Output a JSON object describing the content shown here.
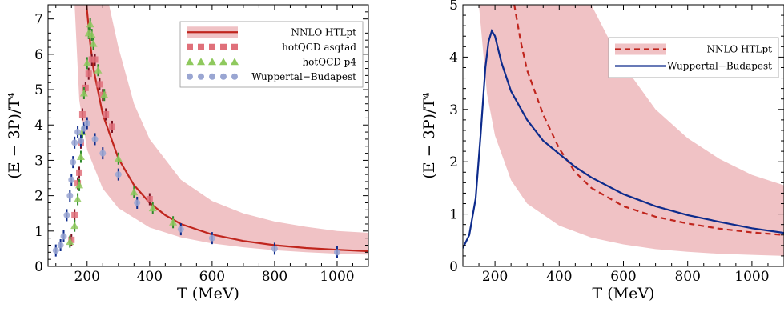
{
  "chart_data": [
    {
      "type": "scatter",
      "xlabel": "T (MeV)",
      "ylabel": "(E − 3P)/T⁴",
      "xlim": [
        75,
        1100
      ],
      "ylim": [
        0,
        7.4
      ],
      "xticks": [
        200,
        400,
        600,
        800,
        1000
      ],
      "yticks": [
        0,
        1,
        2,
        3,
        4,
        5,
        6,
        7
      ],
      "legend_position": "top-right",
      "band": {
        "color": "#f0c2c5",
        "lower": [
          [
            160,
            7.4
          ],
          [
            175,
            4.7
          ],
          [
            200,
            3.3
          ],
          [
            250,
            2.2
          ],
          [
            300,
            1.65
          ],
          [
            400,
            1.1
          ],
          [
            500,
            0.82
          ],
          [
            600,
            0.65
          ],
          [
            700,
            0.54
          ],
          [
            800,
            0.46
          ],
          [
            900,
            0.4
          ],
          [
            1000,
            0.36
          ],
          [
            1100,
            0.33
          ]
        ],
        "upper": [
          [
            145,
            7.4
          ],
          [
            200,
            7.4
          ],
          [
            270,
            7.4
          ],
          [
            300,
            6.2
          ],
          [
            350,
            4.6
          ],
          [
            400,
            3.6
          ],
          [
            500,
            2.45
          ],
          [
            600,
            1.85
          ],
          [
            700,
            1.5
          ],
          [
            800,
            1.27
          ],
          [
            900,
            1.12
          ],
          [
            1000,
            1.0
          ],
          [
            1100,
            0.95
          ]
        ]
      },
      "series": [
        {
          "name": "NNLO HTLpt",
          "style": "line",
          "color": "#c0251d",
          "points": [
            [
              198,
              7.4
            ],
            [
              210,
              6.3
            ],
            [
              220,
              5.6
            ],
            [
              250,
              4.3
            ],
            [
              300,
              3.05
            ],
            [
              350,
              2.3
            ],
            [
              400,
              1.8
            ],
            [
              450,
              1.45
            ],
            [
              500,
              1.2
            ],
            [
              600,
              0.9
            ],
            [
              700,
              0.72
            ],
            [
              800,
              0.6
            ],
            [
              900,
              0.52
            ],
            [
              1000,
              0.47
            ],
            [
              1100,
              0.43
            ]
          ]
        },
        {
          "name": "hotQCD asqtad",
          "style": "square",
          "color": "#e0707a",
          "points": [
            [
              150,
              0.75
            ],
            [
              160,
              1.45
            ],
            [
              170,
              2.35
            ],
            [
              175,
              2.65
            ],
            [
              180,
              3.5
            ],
            [
              185,
              4.3
            ],
            [
              195,
              5.05
            ],
            [
              205,
              5.45
            ],
            [
              215,
              5.85
            ],
            [
              225,
              5.85
            ],
            [
              240,
              5.15
            ],
            [
              250,
              4.85
            ],
            [
              260,
              4.3
            ],
            [
              280,
              3.95
            ],
            [
              400,
              1.9
            ]
          ]
        },
        {
          "name": "hotQCD p4",
          "style": "triangle",
          "color": "#8fc95e",
          "points": [
            [
              145,
              0.7
            ],
            [
              160,
              1.15
            ],
            [
              170,
              1.9
            ],
            [
              175,
              2.3
            ],
            [
              180,
              3.1
            ],
            [
              185,
              3.8
            ],
            [
              190,
              4.9
            ],
            [
              200,
              5.75
            ],
            [
              205,
              6.6
            ],
            [
              210,
              6.85
            ],
            [
              215,
              6.55
            ],
            [
              220,
              6.3
            ],
            [
              235,
              5.55
            ],
            [
              255,
              4.85
            ],
            [
              300,
              3.05
            ],
            [
              350,
              2.1
            ],
            [
              410,
              1.65
            ],
            [
              475,
              1.25
            ]
          ]
        },
        {
          "name": "Wuppertal−Budapest",
          "style": "circle",
          "color": "#9aa6d2",
          "points": [
            [
              100,
              0.45
            ],
            [
              115,
              0.6
            ],
            [
              125,
              0.85
            ],
            [
              135,
              1.45
            ],
            [
              145,
              2.0
            ],
            [
              150,
              2.45
            ],
            [
              155,
              2.95
            ],
            [
              160,
              3.5
            ],
            [
              170,
              3.8
            ],
            [
              180,
              3.55
            ],
            [
              190,
              3.9
            ],
            [
              200,
              4.05
            ],
            [
              225,
              3.6
            ],
            [
              250,
              3.2
            ],
            [
              300,
              2.6
            ],
            [
              360,
              1.8
            ],
            [
              500,
              1.05
            ],
            [
              600,
              0.8
            ],
            [
              800,
              0.5
            ],
            [
              1000,
              0.4
            ]
          ]
        }
      ]
    },
    {
      "type": "line",
      "xlabel": "T (MeV)",
      "ylabel": "(E − 3P)/T⁴",
      "xlim": [
        100,
        1100
      ],
      "ylim": [
        0,
        5
      ],
      "xticks": [
        200,
        400,
        600,
        800,
        1000
      ],
      "yticks": [
        0,
        1,
        2,
        3,
        4,
        5
      ],
      "legend_position": "top-right",
      "band": {
        "color": "#f0c2c5",
        "lower": [
          [
            150,
            5
          ],
          [
            175,
            3.3
          ],
          [
            200,
            2.5
          ],
          [
            250,
            1.65
          ],
          [
            300,
            1.2
          ],
          [
            400,
            0.78
          ],
          [
            500,
            0.55
          ],
          [
            600,
            0.42
          ],
          [
            700,
            0.33
          ],
          [
            800,
            0.28
          ],
          [
            900,
            0.24
          ],
          [
            1000,
            0.22
          ],
          [
            1100,
            0.2
          ]
        ],
        "upper": [
          [
            125,
            5
          ],
          [
            250,
            5
          ],
          [
            500,
            5
          ],
          [
            550,
            4.4
          ],
          [
            600,
            3.85
          ],
          [
            700,
            3.0
          ],
          [
            800,
            2.45
          ],
          [
            900,
            2.05
          ],
          [
            1000,
            1.75
          ],
          [
            1100,
            1.55
          ]
        ]
      },
      "series": [
        {
          "name": "NNLO HTLpt",
          "style": "dashed",
          "color": "#c0251d",
          "points": [
            [
              260,
              5
            ],
            [
              280,
              4.3
            ],
            [
              300,
              3.75
            ],
            [
              350,
              2.9
            ],
            [
              400,
              2.25
            ],
            [
              450,
              1.8
            ],
            [
              500,
              1.5
            ],
            [
              600,
              1.15
            ],
            [
              700,
              0.95
            ],
            [
              800,
              0.82
            ],
            [
              900,
              0.72
            ],
            [
              1000,
              0.65
            ],
            [
              1100,
              0.6
            ]
          ]
        },
        {
          "name": "Wuppertal−Budapest",
          "style": "solid",
          "color": "#0d2b8c",
          "points": [
            [
              100,
              0.35
            ],
            [
              120,
              0.6
            ],
            [
              140,
              1.3
            ],
            [
              155,
              2.5
            ],
            [
              170,
              3.8
            ],
            [
              180,
              4.3
            ],
            [
              190,
              4.5
            ],
            [
              200,
              4.4
            ],
            [
              220,
              3.9
            ],
            [
              250,
              3.35
            ],
            [
              300,
              2.8
            ],
            [
              350,
              2.4
            ],
            [
              400,
              2.15
            ],
            [
              450,
              1.9
            ],
            [
              500,
              1.7
            ],
            [
              600,
              1.38
            ],
            [
              700,
              1.15
            ],
            [
              800,
              0.98
            ],
            [
              900,
              0.85
            ],
            [
              1000,
              0.73
            ],
            [
              1100,
              0.64
            ]
          ]
        }
      ]
    }
  ]
}
